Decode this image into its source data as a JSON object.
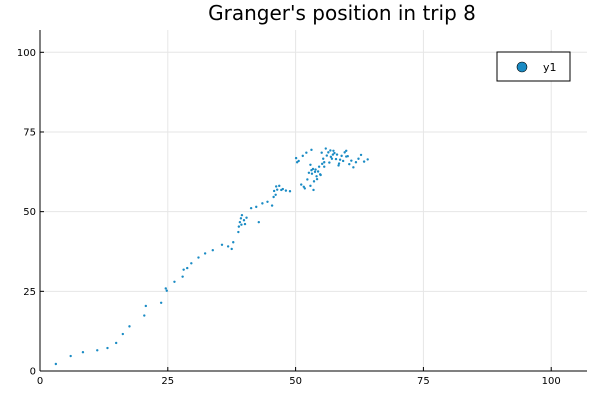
{
  "chart_data": {
    "type": "scatter",
    "title": "Granger's position in trip 8",
    "xlabel": "",
    "ylabel": "",
    "xlim": [
      0,
      107
    ],
    "ylim": [
      0,
      107
    ],
    "xticks": [
      0,
      25,
      50,
      75,
      100
    ],
    "yticks": [
      0,
      25,
      50,
      75,
      100
    ],
    "xtick_labels": [
      "0",
      "25",
      "50",
      "75",
      "100"
    ],
    "ytick_labels": [
      "0",
      "25",
      "50",
      "75",
      "100"
    ],
    "grid": true,
    "legend": "top-right",
    "series_color": "#1a8bc4",
    "series": [
      {
        "name": "y1",
        "x": [
          3.1,
          6.0,
          8.4,
          11.2,
          13.2,
          14.9,
          16.2,
          17.5,
          20.4,
          20.7,
          23.7,
          24.6,
          24.8,
          26.3,
          27.9,
          28.1,
          28.8,
          29.6,
          31.0,
          32.3,
          33.8,
          35.6,
          36.8,
          37.5,
          37.8,
          38.8,
          38.9,
          39.1,
          39.3,
          39.4,
          39.5,
          39.9,
          40.1,
          40.4,
          41.3,
          42.3,
          42.8,
          43.5,
          44.5,
          45.4,
          45.7,
          45.8,
          46.1,
          46.2,
          46.4,
          46.8,
          47.2,
          47.5,
          48.1,
          48.9,
          50.1,
          50.3,
          50.6,
          51.1,
          51.4,
          51.8,
          52.1,
          52.3,
          52.6,
          52.9,
          53.1,
          53.2,
          53.4,
          53.6,
          53.9,
          54.1,
          54.4,
          54.6,
          54.9,
          55.1,
          55.4,
          55.6,
          55.9,
          56.1,
          56.4,
          56.6,
          56.9,
          57.1,
          57.4,
          57.6,
          57.9,
          58.1,
          58.4,
          58.7,
          59.0,
          59.3,
          59.6,
          59.9,
          60.2,
          60.5,
          60.9,
          61.3,
          61.8,
          62.3,
          62.8,
          63.4,
          64.1,
          52.9,
          53.5,
          54.2,
          54.8,
          53.1,
          55.6,
          57.3,
          58.5,
          59.9,
          51.6,
          56.8,
          53.8,
          55.2
        ],
        "y": [
          2.2,
          4.7,
          5.9,
          6.5,
          7.2,
          8.8,
          11.6,
          14.0,
          17.4,
          20.4,
          21.4,
          25.9,
          25.2,
          28.0,
          29.6,
          31.8,
          32.3,
          33.8,
          35.6,
          36.9,
          37.9,
          39.6,
          39.1,
          38.3,
          40.4,
          43.6,
          45.3,
          46.7,
          47.9,
          45.9,
          48.9,
          47.3,
          46.1,
          48.1,
          51.1,
          51.5,
          46.7,
          52.6,
          53.1,
          51.9,
          54.6,
          56.5,
          55.3,
          57.9,
          56.9,
          58.1,
          56.8,
          57.1,
          56.6,
          56.4,
          66.8,
          65.5,
          65.9,
          58.5,
          67.5,
          57.3,
          68.5,
          60.1,
          62.2,
          64.7,
          69.4,
          61.9,
          63.4,
          59.5,
          63.2,
          61.1,
          62.6,
          64.1,
          61.5,
          68.5,
          66.6,
          65.5,
          69.8,
          67.6,
          68.6,
          65.4,
          67.2,
          66.6,
          69.1,
          68.4,
          66.5,
          67.9,
          64.5,
          66.3,
          67.5,
          65.9,
          68.6,
          69.1,
          67.4,
          64.9,
          66.0,
          63.9,
          65.5,
          66.6,
          67.8,
          65.7,
          66.4,
          58.1,
          56.8,
          60.2,
          61.7,
          63.0,
          64.1,
          67.9,
          65.1,
          67.3,
          57.8,
          69.2,
          62.5,
          65.0
        ]
      }
    ]
  }
}
